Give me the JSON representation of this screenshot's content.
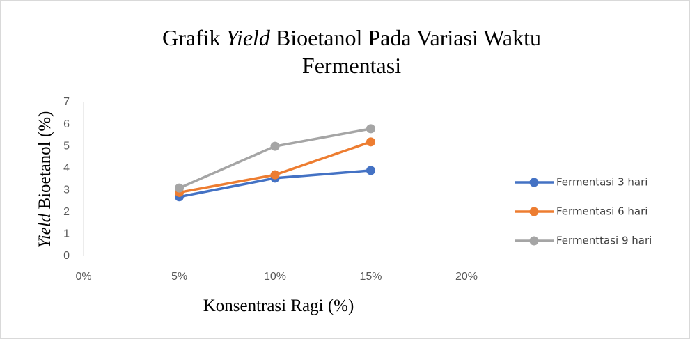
{
  "chart_data": {
    "type": "line",
    "title": [
      [
        {
          "text": "Grafik "
        },
        {
          "text": "Yield",
          "italic": true
        },
        {
          "text": " Bioetanol Pada Variasi Waktu"
        }
      ],
      [
        {
          "text": "Fermentasi"
        }
      ]
    ],
    "x_label": [
      {
        "text": "Konsentrasi Ragi (%)"
      }
    ],
    "y_label": [
      {
        "text": "Yield",
        "italic": true
      },
      {
        "text": " Bioetanol (%)"
      }
    ],
    "x": [
      5,
      10,
      15
    ],
    "xlim": [
      0,
      20
    ],
    "xticks": [
      {
        "value": 0,
        "label": "0%"
      },
      {
        "value": 5,
        "label": "5%"
      },
      {
        "value": 10,
        "label": "10%"
      },
      {
        "value": 15,
        "label": "15%"
      },
      {
        "value": 20,
        "label": "20%"
      }
    ],
    "ylim": [
      0,
      7
    ],
    "yticks": [
      0,
      1,
      2,
      3,
      4,
      5,
      6,
      7
    ],
    "grid": false,
    "legend": "right",
    "series": [
      {
        "name": "Fermentasi 3 hari",
        "color": "#4472c4",
        "values": [
          2.7,
          3.55,
          3.9
        ]
      },
      {
        "name": "Fermentasi 6 hari",
        "color": "#ed7d31",
        "values": [
          2.9,
          3.7,
          5.2
        ]
      },
      {
        "name": "Fermenttasi 9 hari",
        "color": "#a5a5a5",
        "values": [
          3.1,
          5.0,
          5.8
        ]
      }
    ]
  }
}
